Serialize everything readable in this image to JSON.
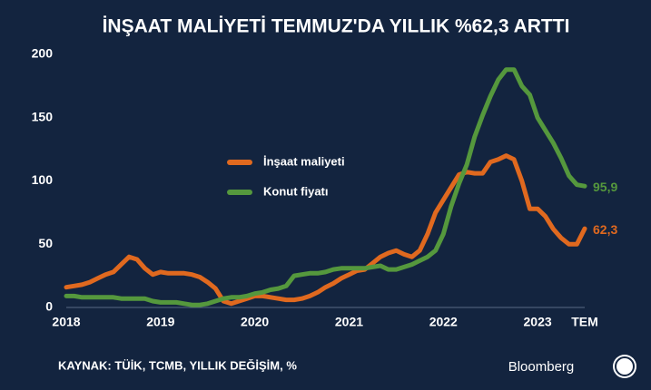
{
  "chart_data": {
    "type": "line",
    "title": "İNŞAAT MALİYETİ TEMMUZ'DA YILLIK %62,3 ARTTI",
    "source": "KAYNAK: TÜİK, TCMB, YILLIK DEĞİŞİM, %",
    "brand": "Bloomberg",
    "x": [
      2018,
      2018.083,
      2018.167,
      2018.25,
      2018.333,
      2018.417,
      2018.5,
      2018.583,
      2018.667,
      2018.75,
      2018.833,
      2018.917,
      2019,
      2019.083,
      2019.167,
      2019.25,
      2019.333,
      2019.417,
      2019.5,
      2019.583,
      2019.667,
      2019.75,
      2019.833,
      2019.917,
      2020,
      2020.083,
      2020.167,
      2020.25,
      2020.333,
      2020.417,
      2020.5,
      2020.583,
      2020.667,
      2020.75,
      2020.833,
      2020.917,
      2021,
      2021.083,
      2021.167,
      2021.25,
      2021.333,
      2021.417,
      2021.5,
      2021.583,
      2021.667,
      2021.75,
      2021.833,
      2021.917,
      2022,
      2022.083,
      2022.167,
      2022.25,
      2022.333,
      2022.417,
      2022.5,
      2022.583,
      2022.667,
      2022.75,
      2022.833,
      2022.917,
      2023,
      2023.083,
      2023.167,
      2023.25,
      2023.333,
      2023.417,
      2023.5
    ],
    "series": [
      {
        "name": "İnşaat maliyeti",
        "color": "#e0691f",
        "values": [
          16,
          17,
          18,
          20,
          23,
          26,
          28,
          34,
          40,
          38,
          31,
          26,
          28,
          27,
          27,
          27,
          26,
          24,
          20,
          15,
          5,
          3,
          5,
          7,
          9,
          9,
          8,
          7,
          6,
          6,
          7,
          9,
          12,
          16,
          19,
          23,
          26,
          29,
          30,
          35,
          40,
          43,
          45,
          42,
          40,
          45,
          58,
          75,
          85,
          95,
          105,
          107,
          106,
          106,
          115,
          117,
          120,
          117,
          100,
          78,
          78,
          72,
          62,
          55,
          50,
          50,
          62.3
        ],
        "value_labels": [
          null,
          null,
          null,
          null,
          null,
          null,
          null,
          null,
          null,
          null,
          null,
          null,
          null,
          null,
          null,
          null,
          null,
          null,
          null,
          null,
          null,
          null,
          null,
          null,
          null,
          null,
          null,
          null,
          null,
          null,
          null,
          null,
          null,
          null,
          null,
          null,
          null,
          null,
          null,
          null,
          null,
          null,
          null,
          null,
          null,
          null,
          null,
          null,
          null,
          null,
          null,
          null,
          null,
          null,
          null,
          null,
          null,
          null,
          null,
          null,
          null,
          null,
          null,
          null,
          null,
          null,
          "62,3"
        ]
      },
      {
        "name": "Konut fiyatı",
        "color": "#55983d",
        "values": [
          9,
          9,
          8,
          8,
          8,
          8,
          8,
          7,
          7,
          7,
          7,
          5,
          4,
          4,
          4,
          3,
          2,
          2,
          3,
          5,
          7,
          8,
          8,
          9,
          11,
          12,
          14,
          15,
          17,
          25,
          26,
          27,
          27,
          28,
          30,
          31,
          31,
          31,
          31,
          32,
          33,
          30,
          30,
          32,
          34,
          37,
          40,
          45,
          58,
          80,
          98,
          113,
          135,
          152,
          167,
          180,
          188,
          188,
          175,
          168,
          150,
          140,
          130,
          118,
          104,
          97,
          95.9
        ],
        "value_labels": [
          null,
          null,
          null,
          null,
          null,
          null,
          null,
          null,
          null,
          null,
          null,
          null,
          null,
          null,
          null,
          null,
          null,
          null,
          null,
          null,
          null,
          null,
          null,
          null,
          null,
          null,
          null,
          null,
          null,
          null,
          null,
          null,
          null,
          null,
          null,
          null,
          null,
          null,
          null,
          null,
          null,
          null,
          null,
          null,
          null,
          null,
          null,
          null,
          null,
          null,
          null,
          null,
          null,
          null,
          null,
          null,
          null,
          null,
          null,
          null,
          null,
          null,
          null,
          null,
          null,
          null,
          "95,9"
        ]
      }
    ],
    "xlim": [
      2018,
      2023.5
    ],
    "xticks": [
      2018,
      2019,
      2020,
      2021,
      2022,
      2023,
      {
        "value": 2023.5,
        "label": "TEM"
      }
    ],
    "ylim": [
      0,
      200
    ],
    "yticks": [
      0,
      50,
      100,
      150,
      200
    ]
  }
}
